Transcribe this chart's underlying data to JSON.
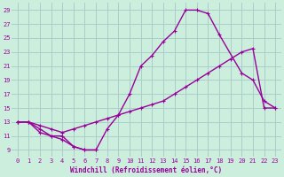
{
  "xlabel": "Windchill (Refroidissement éolien,°C)",
  "bg_color": "#cceedd",
  "grid_color": "#aacccc",
  "line_color": "#990099",
  "xlim": [
    -0.5,
    23.5
  ],
  "ylim": [
    8,
    30
  ],
  "yticks": [
    9,
    11,
    13,
    15,
    17,
    19,
    21,
    23,
    25,
    27,
    29
  ],
  "xticks": [
    0,
    1,
    2,
    3,
    4,
    5,
    6,
    7,
    8,
    9,
    10,
    11,
    12,
    13,
    14,
    15,
    16,
    17,
    18,
    19,
    20,
    21,
    22,
    23
  ],
  "line1_x": [
    0,
    1,
    2,
    3,
    4,
    5,
    6,
    7,
    8,
    9,
    10,
    11,
    12,
    13,
    14,
    15,
    16,
    17,
    18,
    19,
    20,
    21,
    22,
    23
  ],
  "line1_y": [
    13,
    13,
    12.5,
    12,
    11.5,
    12,
    12.5,
    13,
    13.5,
    14,
    14.5,
    15,
    15.5,
    16,
    17,
    18,
    19,
    20,
    21,
    22,
    23,
    23.5,
    15,
    15
  ],
  "line2_x": [
    0,
    1,
    2,
    3,
    4,
    5,
    6,
    7,
    8,
    9,
    10,
    11,
    12,
    13,
    14,
    15,
    16,
    17,
    18,
    20,
    21,
    22,
    23
  ],
  "line2_y": [
    13,
    13,
    12,
    11,
    11,
    9.5,
    9,
    9,
    12,
    14,
    17,
    21,
    22.5,
    24.5,
    26,
    29,
    29,
    28.5,
    25.5,
    20,
    19,
    16,
    15
  ],
  "line3_x": [
    0,
    1,
    2,
    3,
    4,
    5,
    6,
    7
  ],
  "line3_y": [
    13,
    13,
    11.5,
    11,
    10.5,
    9.5,
    9,
    9
  ]
}
